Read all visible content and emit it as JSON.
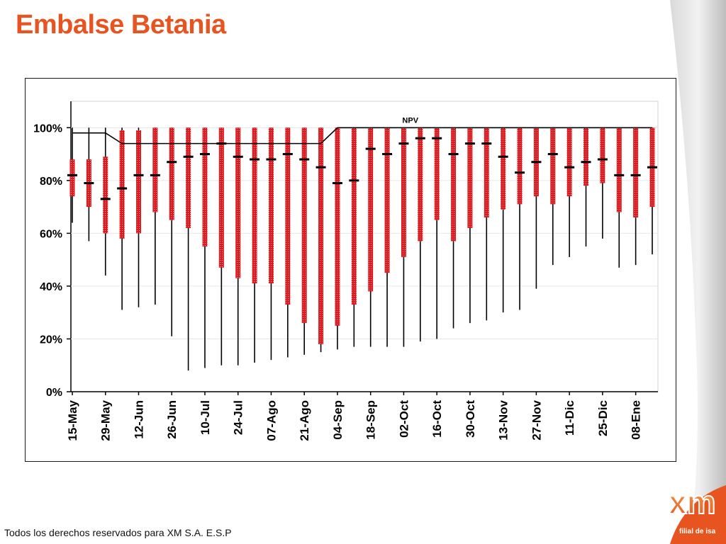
{
  "slide": {
    "title": "Embalse Betania",
    "footer": "Todos los derechos reservados para XM S.A. E.S.P",
    "logo_text": "xm",
    "tagline": "filial de isa"
  },
  "colors": {
    "title": "#e8541f",
    "bar": "#e0191f",
    "bar_dots": "#f6b3b3",
    "median": "#000000",
    "npv": "#000000"
  },
  "chart_data": {
    "type": "boxplot",
    "title": "",
    "xlabel": "",
    "ylabel": "",
    "ylim": [
      0,
      110
    ],
    "yticks": [
      0,
      20,
      40,
      60,
      80,
      100
    ],
    "ytick_labels": [
      "0%",
      "20%",
      "40%",
      "60%",
      "80%",
      "100%"
    ],
    "xtick_labels": [
      "15-May",
      "29-May",
      "12-Jun",
      "26-Jun",
      "10-Jul",
      "24-Jul",
      "07-Ago",
      "21-Ago",
      "04-Sep",
      "18-Sep",
      "02-Oct",
      "16-Oct",
      "30-Oct",
      "13-Nov",
      "27-Nov",
      "11-Dic",
      "25-Dic",
      "08-Ene"
    ],
    "npv_label": "NPV",
    "npv": [
      {
        "week": 0,
        "value": 98
      },
      {
        "week": 2,
        "value": 98
      },
      {
        "week": 3,
        "value": 94
      },
      {
        "week": 15,
        "value": 94
      },
      {
        "week": 16,
        "value": 100
      },
      {
        "week": 35,
        "value": 100
      }
    ],
    "weeks": [
      {
        "min": 64,
        "q1": 74,
        "median": 82,
        "q3": 88,
        "max": 100
      },
      {
        "min": 57,
        "q1": 70,
        "median": 79,
        "q3": 88,
        "max": 100
      },
      {
        "min": 44,
        "q1": 60,
        "median": 73,
        "q3": 89,
        "max": 100
      },
      {
        "min": 31,
        "q1": 58,
        "median": 77,
        "q3": 99,
        "max": 100
      },
      {
        "min": 32,
        "q1": 60,
        "median": 82,
        "q3": 99,
        "max": 100
      },
      {
        "min": 33,
        "q1": 68,
        "median": 82,
        "q3": 100,
        "max": 100
      },
      {
        "min": 21,
        "q1": 65,
        "median": 87,
        "q3": 100,
        "max": 100
      },
      {
        "min": 8,
        "q1": 62,
        "median": 89,
        "q3": 100,
        "max": 100
      },
      {
        "min": 9,
        "q1": 55,
        "median": 90,
        "q3": 100,
        "max": 100
      },
      {
        "min": 10,
        "q1": 47,
        "median": 94,
        "q3": 100,
        "max": 100
      },
      {
        "min": 10,
        "q1": 43,
        "median": 89,
        "q3": 100,
        "max": 100
      },
      {
        "min": 11,
        "q1": 41,
        "median": 88,
        "q3": 100,
        "max": 100
      },
      {
        "min": 12,
        "q1": 41,
        "median": 88,
        "q3": 100,
        "max": 100
      },
      {
        "min": 13,
        "q1": 33,
        "median": 90,
        "q3": 100,
        "max": 100
      },
      {
        "min": 14,
        "q1": 26,
        "median": 88,
        "q3": 100,
        "max": 100
      },
      {
        "min": 15,
        "q1": 18,
        "median": 85,
        "q3": 100,
        "max": 100
      },
      {
        "min": 16,
        "q1": 25,
        "median": 79,
        "q3": 100,
        "max": 100
      },
      {
        "min": 17,
        "q1": 33,
        "median": 80,
        "q3": 100,
        "max": 100
      },
      {
        "min": 17,
        "q1": 38,
        "median": 92,
        "q3": 100,
        "max": 100
      },
      {
        "min": 17,
        "q1": 45,
        "median": 90,
        "q3": 100,
        "max": 100
      },
      {
        "min": 17,
        "q1": 51,
        "median": 94,
        "q3": 100,
        "max": 100
      },
      {
        "min": 19,
        "q1": 57,
        "median": 96,
        "q3": 100,
        "max": 100
      },
      {
        "min": 20,
        "q1": 65,
        "median": 96,
        "q3": 100,
        "max": 100
      },
      {
        "min": 24,
        "q1": 57,
        "median": 90,
        "q3": 100,
        "max": 100
      },
      {
        "min": 26,
        "q1": 62,
        "median": 94,
        "q3": 100,
        "max": 100
      },
      {
        "min": 27,
        "q1": 66,
        "median": 94,
        "q3": 100,
        "max": 100
      },
      {
        "min": 30,
        "q1": 69,
        "median": 89,
        "q3": 100,
        "max": 100
      },
      {
        "min": 31,
        "q1": 71,
        "median": 83,
        "q3": 100,
        "max": 100
      },
      {
        "min": 39,
        "q1": 74,
        "median": 87,
        "q3": 100,
        "max": 100
      },
      {
        "min": 48,
        "q1": 71,
        "median": 90,
        "q3": 100,
        "max": 100
      },
      {
        "min": 51,
        "q1": 74,
        "median": 85,
        "q3": 100,
        "max": 100
      },
      {
        "min": 55,
        "q1": 78,
        "median": 87,
        "q3": 100,
        "max": 100
      },
      {
        "min": 58,
        "q1": 79,
        "median": 88,
        "q3": 100,
        "max": 100
      },
      {
        "min": 47,
        "q1": 68,
        "median": 82,
        "q3": 100,
        "max": 100
      },
      {
        "min": 48,
        "q1": 66,
        "median": 82,
        "q3": 100,
        "max": 100
      },
      {
        "min": 52,
        "q1": 70,
        "median": 85,
        "q3": 100,
        "max": 100
      }
    ]
  }
}
